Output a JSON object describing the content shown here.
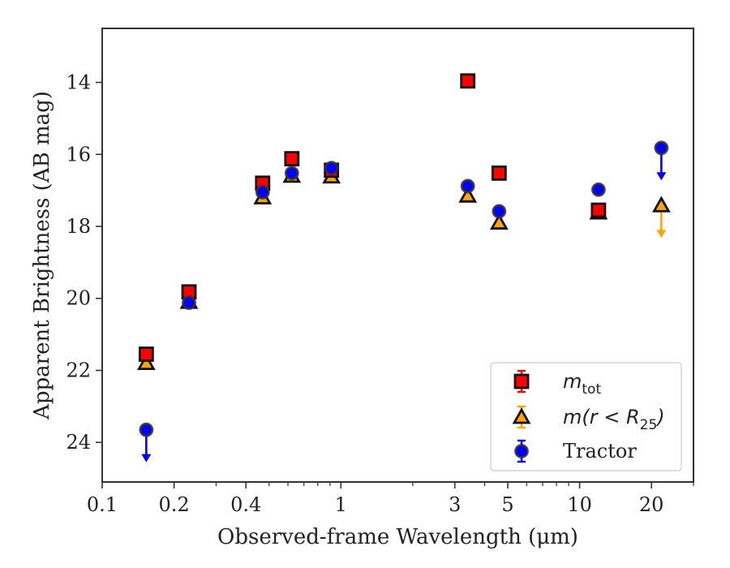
{
  "chart_data": {
    "type": "scatter",
    "title": "",
    "xlabel": "Observed-frame Wavelength (μm)",
    "ylabel": "Apparent Brightness (AB mag)",
    "xscale": "log",
    "xlim": [
      0.1,
      30
    ],
    "ylim": [
      25.1,
      12.5
    ],
    "y_inverted": true,
    "x_ticks": [
      0.1,
      0.2,
      0.4,
      1,
      3,
      5,
      10,
      20
    ],
    "x_tick_labels": [
      "0.1",
      "0.2",
      "0.4",
      "1",
      "3",
      "5",
      "10",
      "20"
    ],
    "y_ticks": [
      14,
      16,
      18,
      20,
      22,
      24
    ],
    "y_tick_labels": [
      "14",
      "16",
      "18",
      "20",
      "22",
      "24"
    ],
    "grid": false,
    "legend_position": "lower-right",
    "series": [
      {
        "name": "m_tot",
        "label_parts": [
          "m",
          "tot",
          ""
        ],
        "marker": "square",
        "color": "#ff0000",
        "edge_color": "#111111",
        "points": [
          {
            "x": 0.153,
            "y": 21.55
          },
          {
            "x": 0.231,
            "y": 19.82
          },
          {
            "x": 0.47,
            "y": 16.8
          },
          {
            "x": 0.623,
            "y": 16.12
          },
          {
            "x": 0.913,
            "y": 16.44
          },
          {
            "x": 3.4,
            "y": 13.96
          },
          {
            "x": 4.6,
            "y": 16.52
          },
          {
            "x": 12.0,
            "y": 17.55
          }
        ]
      },
      {
        "name": "m(r < R25)",
        "label_parts": [
          "m(r < R",
          "25",
          ")"
        ],
        "marker": "triangle",
        "color": "#ffa500",
        "edge_color": "#111111",
        "points": [
          {
            "x": 0.153,
            "y": 21.8
          },
          {
            "x": 0.231,
            "y": 20.1
          },
          {
            "x": 0.47,
            "y": 17.2
          },
          {
            "x": 0.623,
            "y": 16.6
          },
          {
            "x": 0.913,
            "y": 16.62
          },
          {
            "x": 3.4,
            "y": 17.15
          },
          {
            "x": 4.6,
            "y": 17.9
          },
          {
            "x": 12.0,
            "y": 17.62
          },
          {
            "x": 22.0,
            "y": 17.42,
            "upper_limit": true
          }
        ]
      },
      {
        "name": "Tractor",
        "label_parts": [
          "Tractor",
          "",
          ""
        ],
        "marker": "circle",
        "color": "#0000ff",
        "edge_color": "#333333",
        "points": [
          {
            "x": 0.153,
            "y": 23.65,
            "upper_limit": true
          },
          {
            "x": 0.231,
            "y": 20.12
          },
          {
            "x": 0.47,
            "y": 17.05
          },
          {
            "x": 0.623,
            "y": 16.52
          },
          {
            "x": 0.913,
            "y": 16.38
          },
          {
            "x": 3.4,
            "y": 16.88
          },
          {
            "x": 4.6,
            "y": 17.58
          },
          {
            "x": 12.0,
            "y": 16.98
          },
          {
            "x": 22.0,
            "y": 15.82,
            "upper_limit": true
          }
        ]
      }
    ]
  }
}
